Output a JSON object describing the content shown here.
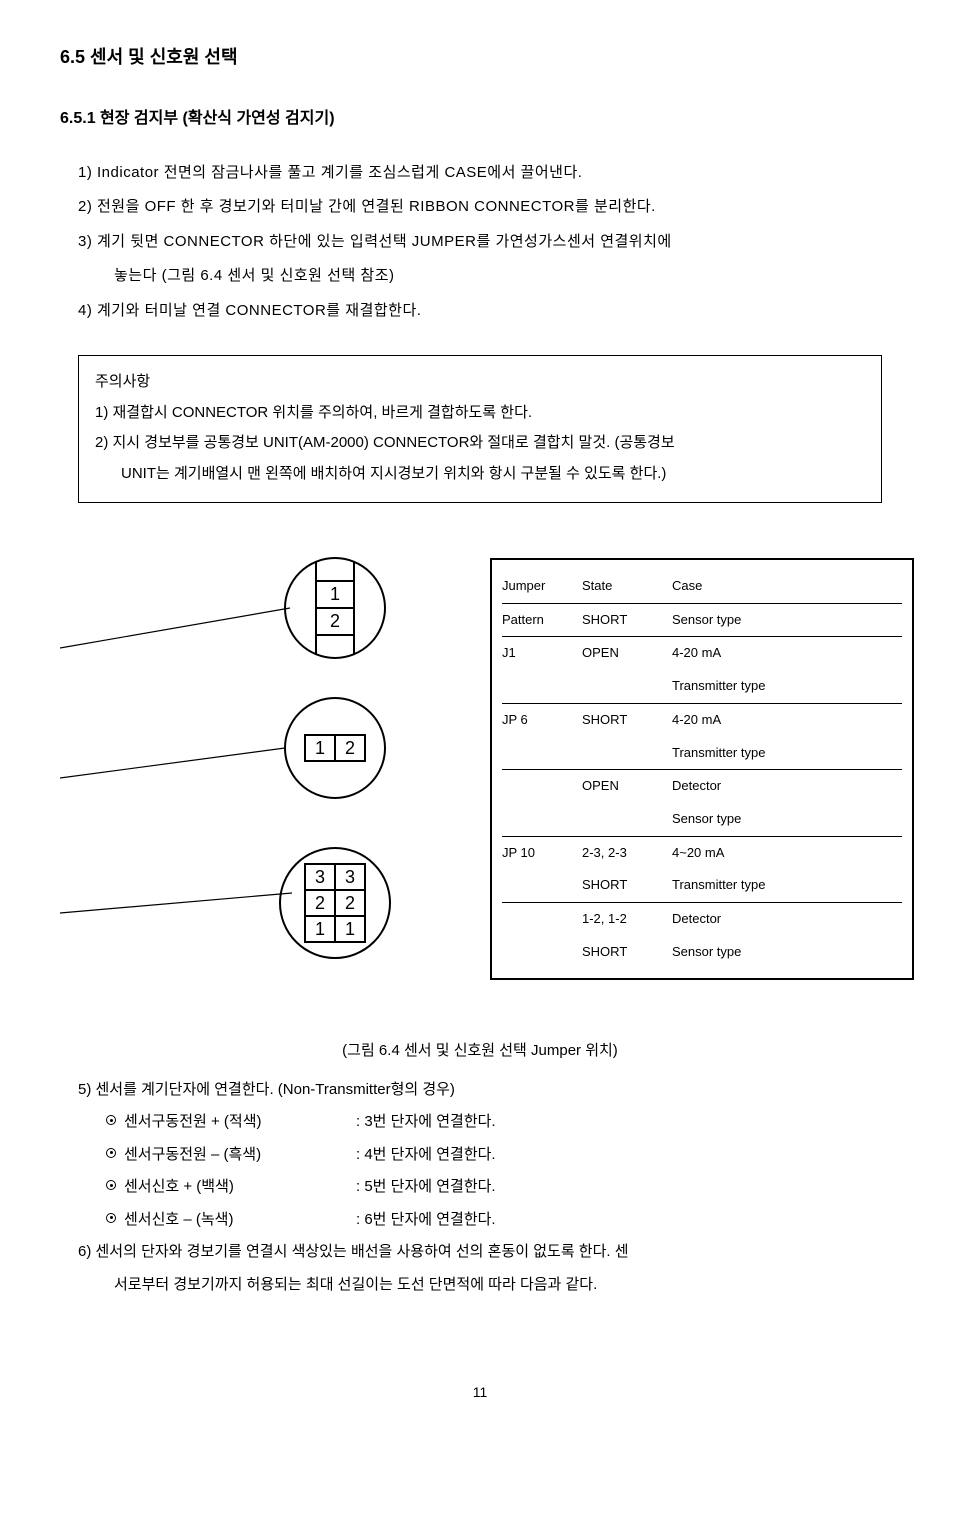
{
  "section_title": "6.5 센서 및 신호원 선택",
  "sub_title": "6.5.1 현장 검지부 (확산식 가연성 검지기)",
  "list": [
    "1) Indicator 전면의 잠금나사를 풀고 계기를 조심스럽게 CASE에서 끌어낸다.",
    "2) 전원을 OFF 한 후 경보기와 터미날 간에 연결된 RIBBON CONNECTOR를 분리한다.",
    "3) 계기 뒷면 CONNECTOR 하단에 있는 입력선택 JUMPER를 가연성가스센서 연결위치에",
    "놓는다 (그림 6.4 센서 및 신호원 선택 참조)",
    "4) 계기와 터미날 연결 CONNECTOR를 재결합한다."
  ],
  "note": {
    "title": "주의사항",
    "l1": "1) 재결합시 CONNECTOR 위치를 주의하여, 바르게 결합하도록 한다.",
    "l2": "2) 지시 경보부를 공통경보 UNIT(AM-2000) CONNECTOR와 절대로 결합치 말것. (공통경보",
    "l3": "UNIT는 계기배열시 맨 왼쪽에 배치하여 지시경보기 위치와 항시 구분될 수 있도록 한다.)"
  },
  "diagram": {
    "circ1": {
      "n": [
        "1",
        "2"
      ]
    },
    "circ2": {
      "n": [
        "1",
        "2"
      ]
    },
    "circ3": {
      "n": [
        "3",
        "3",
        "2",
        "2",
        "1",
        "1"
      ]
    }
  },
  "table": [
    {
      "c1": "Jumper",
      "c2": "State",
      "c3": "Case",
      "b": true
    },
    {
      "c1": "Pattern",
      "c2": "SHORT",
      "c3": "Sensor type",
      "b": true
    },
    {
      "c1": "J1",
      "c2": "OPEN",
      "c3": "4-20 mA",
      "b": false
    },
    {
      "c1": "",
      "c2": "",
      "c3": "Transmitter type",
      "b": true
    },
    {
      "c1": "JP 6",
      "c2": "SHORT",
      "c3": "4-20 mA",
      "b": false
    },
    {
      "c1": "",
      "c2": "",
      "c3": "Transmitter type",
      "b": true
    },
    {
      "c1": "",
      "c2": "OPEN",
      "c3": "Detector",
      "b": false
    },
    {
      "c1": "",
      "c2": "",
      "c3": "Sensor type",
      "b": true
    },
    {
      "c1": "JP 10",
      "c2": "2-3, 2-3",
      "c3": "4~20 mA",
      "b": false
    },
    {
      "c1": "",
      "c2": "SHORT",
      "c3": "Transmitter type",
      "b": true
    },
    {
      "c1": "",
      "c2": "1-2, 1-2",
      "c3": "Detector",
      "b": false
    },
    {
      "c1": "",
      "c2": "SHORT",
      "c3": "Sensor type",
      "b": false
    }
  ],
  "fig_caption": "(그림 6.4 센서 및 신호원 선택 Jumper 위치)",
  "conn_intro": "5) 센서를 계기단자에 연결한다. (Non-Transmitter형의 경우)",
  "conns": [
    {
      "label": "센서구동전원 + (적색)",
      "val": ": 3번 단자에 연결한다."
    },
    {
      "label": "센서구동전원 – (흑색)",
      "val": ": 4번 단자에 연결한다."
    },
    {
      "label": "센서신호       + (백색)",
      "val": ": 5번 단자에 연결한다."
    },
    {
      "label": "센서신호       – (녹색)",
      "val": ": 6번 단자에 연결한다."
    }
  ],
  "tail": [
    "6) 센서의 단자와 경보기를 연결시 색상있는 배선을 사용하여 선의 혼동이 없도록 한다. 센",
    "서로부터 경보기까지 허용되는 최대 선길이는 도선 단면적에 따라 다음과 같다."
  ],
  "page": "11"
}
